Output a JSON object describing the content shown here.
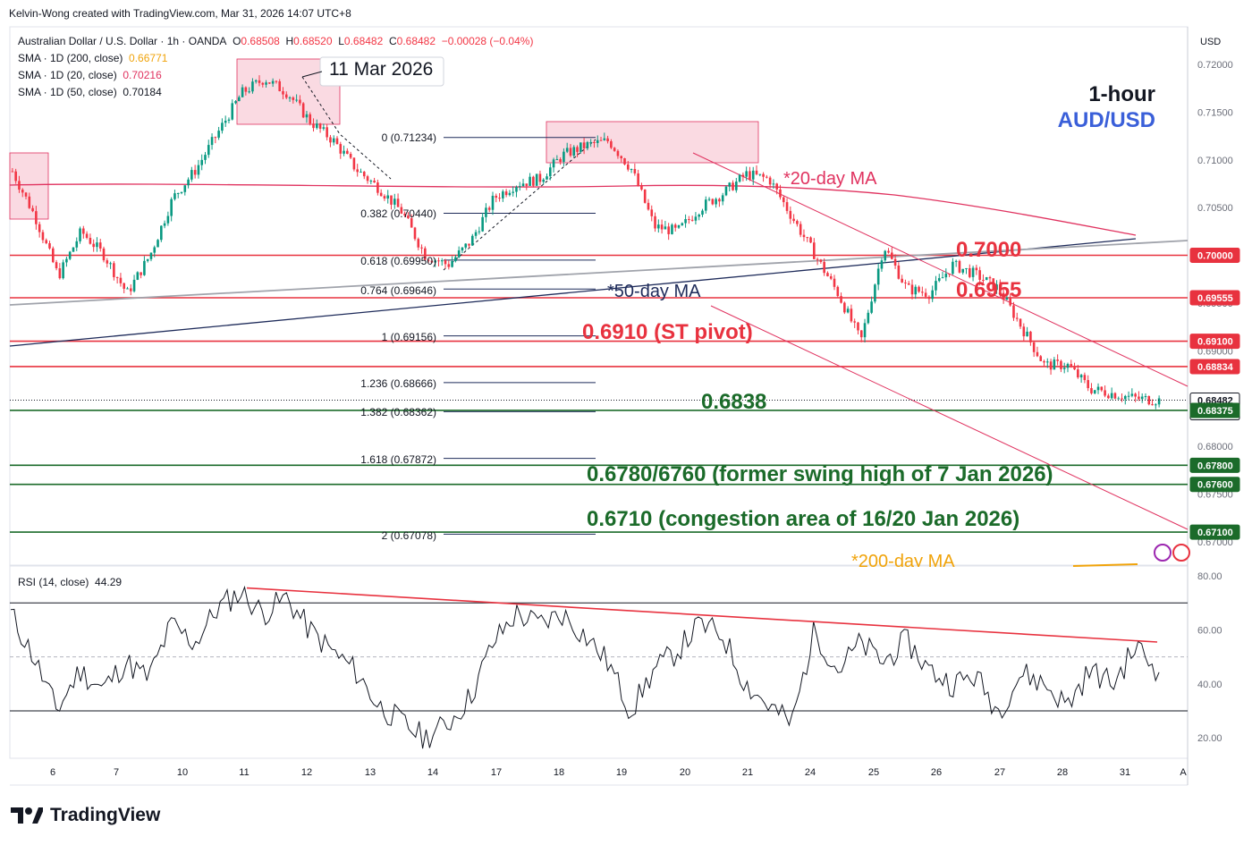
{
  "header": {
    "credit": "Kelvin-Wong created with TradingView.com, Mar 31, 2026 14:07 UTC+8",
    "symbol": "Australian Dollar / U.S. Dollar · 1h · OANDA",
    "o_label": "O",
    "o_value": "0.68508",
    "h_label": "H",
    "h_value": "0.68520",
    "l_label": "L",
    "l_value": "0.68482",
    "c_label": "C",
    "c_value": "0.68482",
    "change": "−0.00028 (−0.04%)",
    "sma200_label": "SMA · 1D (200, close)",
    "sma200_value": "0.66771",
    "sma20_label": "SMA · 1D (20, close)",
    "sma20_value": "0.70216",
    "sma50_label": "SMA · 1D (50, close)",
    "sma50_value": "0.70184",
    "currency": "USD"
  },
  "titles": {
    "timeframe": "1-hour",
    "pair": "AUD/USD"
  },
  "annotations": {
    "date_callout": "11 Mar 2026",
    "ma20": "*20-day MA",
    "ma50": "*50-day MA",
    "ma200": "*200-day MA",
    "lvl_7000": "0.7000",
    "lvl_6955": "0.6955",
    "lvl_6910": "0.6910 (ST pivot)",
    "lvl_6838": "0.6838",
    "lvl_6780": "0.6780/6760 (former swing high of 7 Jan 2026)",
    "lvl_6710": "0.6710 (congestion area of 16/20 Jan 2026)"
  },
  "fib_labels": [
    "0 (0.71234)",
    "0.382 (0.70440)",
    "0.618 (0.69950)",
    "0.764 (0.69646)",
    "1 (0.69156)",
    "1.236 (0.68666)",
    "1.382 (0.68362)",
    "1.618 (0.67872)",
    "2 (0.67078)"
  ],
  "rsi": {
    "label": "RSI (14, close)",
    "value": "44.29"
  },
  "brand": {
    "name": "TradingView"
  },
  "colors": {
    "up": "#089981",
    "down": "#f23645",
    "ma20": "#e0325f",
    "ma50": "#1e2b5a",
    "ma200": "#f0a30a",
    "resistance": "#e8323f",
    "support": "#1b6b2a",
    "box": "#f8c6d2"
  },
  "chart_data": [
    {
      "type": "candlestick",
      "title": "Australian Dollar / U.S. Dollar · 1h · OANDA",
      "x_ticks": [
        "6",
        "7",
        "10",
        "11",
        "12",
        "13",
        "14",
        "17",
        "18",
        "19",
        "20",
        "21",
        "24",
        "25",
        "26",
        "27",
        "28",
        "31",
        "A"
      ],
      "y_ticks": [
        "0.72000",
        "0.71500",
        "0.71000",
        "0.70500",
        "0.70000",
        "0.69500",
        "0.69000",
        "0.68500",
        "0.68000",
        "0.67500",
        "0.67000"
      ],
      "ylim": [
        0.6695,
        0.7225
      ],
      "grid": false,
      "price_close_path": [
        [
          "6",
          0.7088
        ],
        [
          "6",
          0.704
        ],
        [
          "6",
          0.6978
        ],
        [
          "7",
          0.7025
        ],
        [
          "7",
          0.7
        ],
        [
          "7",
          0.696
        ],
        [
          "10",
          0.7
        ],
        [
          "10",
          0.706
        ],
        [
          "10",
          0.709
        ],
        [
          "11",
          0.713
        ],
        [
          "11",
          0.717
        ],
        [
          "11",
          0.7185
        ],
        [
          "12",
          0.717
        ],
        [
          "12",
          0.714
        ],
        [
          "12",
          0.712
        ],
        [
          "13",
          0.709
        ],
        [
          "13",
          0.707
        ],
        [
          "13",
          0.7045
        ],
        [
          "14",
          0.7
        ],
        [
          "14",
          0.699
        ],
        [
          "14",
          0.7015
        ],
        [
          "17",
          0.706
        ],
        [
          "17",
          0.7075
        ],
        [
          "17",
          0.708
        ],
        [
          "18",
          0.7105
        ],
        [
          "18",
          0.7115
        ],
        [
          "18",
          0.712
        ],
        [
          "19",
          0.709
        ],
        [
          "19",
          0.703
        ],
        [
          "19",
          0.7025
        ],
        [
          "20",
          0.705
        ],
        [
          "20",
          0.7065
        ],
        [
          "20",
          0.7085
        ],
        [
          "21",
          0.708
        ],
        [
          "21",
          0.704
        ],
        [
          "21",
          0.7
        ],
        [
          "24",
          0.696
        ],
        [
          "24",
          0.691
        ],
        [
          "24",
          0.701
        ],
        [
          "25",
          0.6965
        ],
        [
          "25",
          0.696
        ],
        [
          "25",
          0.699
        ],
        [
          "26",
          0.698
        ],
        [
          "26",
          0.6965
        ],
        [
          "27",
          0.6925
        ],
        [
          "27",
          0.6885
        ],
        [
          "28",
          0.6885
        ],
        [
          "28",
          0.686
        ],
        [
          "31",
          0.6855
        ],
        [
          "31",
          0.685
        ],
        [
          "31",
          0.68482
        ]
      ],
      "series": [
        {
          "name": "SMA · 1D (20, close)",
          "last": 0.70216
        },
        {
          "name": "SMA · 1D (50, close)",
          "last": 0.70184
        },
        {
          "name": "SMA · 1D (200, close)",
          "last": 0.66771
        }
      ],
      "horizontal_levels": [
        {
          "label": "0.7000",
          "value": 0.7
        },
        {
          "label": "0.6955",
          "value": 0.69555
        },
        {
          "label": "0.6910 (ST pivot)",
          "value": 0.691
        },
        {
          "value": 0.68834
        },
        {
          "label": "0.6838",
          "value": 0.68375
        },
        {
          "label": "0.6780/6760 (former swing high of 7 Jan 2026)",
          "value": 0.678
        },
        {
          "value": 0.676
        },
        {
          "label": "0.6710 (congestion area of 16/20 Jan 2026)",
          "value": 0.671
        }
      ],
      "price_axis_tags": [
        {
          "value": "0.70000",
          "color": "#e8323f"
        },
        {
          "value": "0.69555",
          "color": "#e8323f"
        },
        {
          "value": "0.69100",
          "color": "#e8323f"
        },
        {
          "value": "0.68834",
          "color": "#e8323f"
        },
        {
          "value": "0.68482",
          "color": "#ffffff",
          "sub": "52:12"
        },
        {
          "value": "0.68375",
          "color": "#1b6b2a"
        },
        {
          "value": "0.67800",
          "color": "#1b6b2a"
        },
        {
          "value": "0.67600",
          "color": "#1b6b2a"
        },
        {
          "value": "0.67100",
          "color": "#1b6b2a"
        }
      ],
      "fibonacci": [
        {
          "ratio": 0,
          "value": 0.71234
        },
        {
          "ratio": 0.382,
          "value": 0.7044
        },
        {
          "ratio": 0.618,
          "value": 0.6995
        },
        {
          "ratio": 0.764,
          "value": 0.69646
        },
        {
          "ratio": 1,
          "value": 0.69156
        },
        {
          "ratio": 1.236,
          "value": 0.68666
        },
        {
          "ratio": 1.382,
          "value": 0.68362
        },
        {
          "ratio": 1.618,
          "value": 0.67872
        },
        {
          "ratio": 2,
          "value": 0.67078
        }
      ]
    },
    {
      "type": "line",
      "title": "RSI (14, close)",
      "y_ticks": [
        "80.00",
        "60.00",
        "40.00",
        "20.00"
      ],
      "ylim": [
        13,
        83
      ],
      "bands": [
        70,
        50,
        30
      ],
      "last": 44.29,
      "series": [
        {
          "values": [
            66,
            50,
            30,
            45,
            38,
            48,
            42,
            62,
            55,
            68,
            74,
            66,
            72,
            60,
            52,
            45,
            32,
            26,
            20,
            25,
            35,
            55,
            66,
            62,
            66,
            58,
            48,
            30,
            45,
            52,
            62,
            58,
            40,
            32,
            25,
            60,
            45,
            55,
            48,
            56,
            45,
            40,
            43,
            30,
            44,
            40,
            32,
            45,
            40,
            54,
            44
          ]
        }
      ]
    }
  ]
}
